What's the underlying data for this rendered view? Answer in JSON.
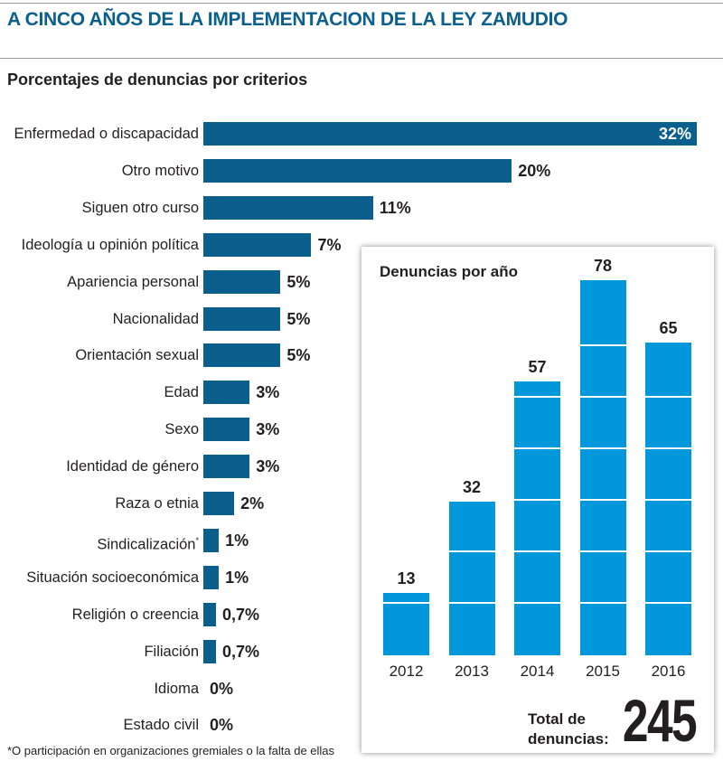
{
  "header": {
    "title": "A CINCO AÑOS DE LA IMPLEMENTACION DE LA LEY ZAMUDIO",
    "subtitle": "Porcentajes de denuncias por criterios"
  },
  "chart_data": [
    {
      "type": "bar",
      "orientation": "horizontal",
      "title": "Porcentajes de denuncias por criterios",
      "categories": [
        "Enfermedad o discapacidad",
        "Otro motivo",
        "Siguen otro curso",
        "Ideología u opinión política",
        "Apariencia personal",
        "Nacionalidad",
        "Orientación sexual",
        "Edad",
        "Sexo",
        "Identidad de género",
        "Raza o etnia",
        "Sindicalización",
        "Situación socioeconómica",
        "Religión o creencia",
        "Filiación",
        "Idioma",
        "Estado civil"
      ],
      "values": [
        32,
        20,
        11,
        7,
        5,
        5,
        5,
        3,
        3,
        3,
        2,
        1,
        1,
        0.7,
        0.7,
        0,
        0
      ],
      "value_labels": [
        "32%",
        "20%",
        "11%",
        "7%",
        "5%",
        "5%",
        "5%",
        "3%",
        "3%",
        "3%",
        "2%",
        "1%",
        "1%",
        "0,7%",
        "0,7%",
        "0%",
        "0%"
      ],
      "footnote_marks": {
        "Sindicalización": "*"
      },
      "xlim": [
        0,
        32
      ],
      "color": "#0b5f8c"
    },
    {
      "type": "bar",
      "orientation": "vertical",
      "title": "Denuncias por año",
      "categories": [
        "2012",
        "2013",
        "2014",
        "2015",
        "2016"
      ],
      "values": [
        13,
        32,
        57,
        78,
        65
      ],
      "ylim": [
        0,
        78
      ],
      "color": "#0097db"
    }
  ],
  "total": {
    "label_line1": "Total de",
    "label_line2": "denuncias:",
    "value": "245"
  },
  "footnote": "*O participación en organizaciones gremiales o la falta de ellas"
}
